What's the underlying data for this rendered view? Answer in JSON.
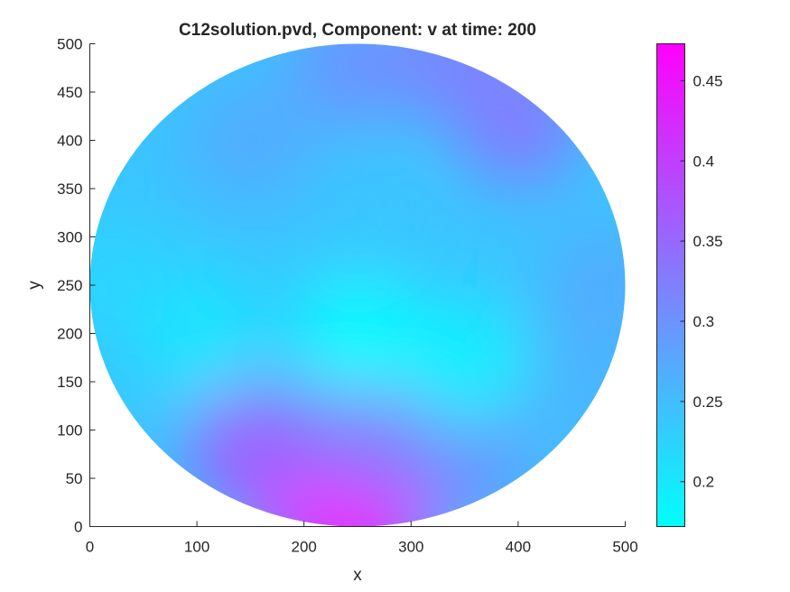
{
  "chart_data": {
    "type": "heatmap",
    "title": "C12solution.pvd, Component: v at time: 200",
    "xlabel": "x",
    "ylabel": "y",
    "xlim": [
      0,
      500
    ],
    "ylim": [
      0,
      500
    ],
    "x_ticks": [
      0,
      100,
      200,
      300,
      400,
      500
    ],
    "y_ticks": [
      0,
      50,
      100,
      150,
      200,
      250,
      300,
      350,
      400,
      450,
      500
    ],
    "x_tick_labels": [
      "0",
      "100",
      "200",
      "300",
      "400",
      "500"
    ],
    "y_tick_labels": [
      "0",
      "50",
      "100",
      "150",
      "200",
      "250",
      "300",
      "350",
      "400",
      "450",
      "500"
    ],
    "domain": {
      "shape": "circle",
      "center": [
        250,
        250
      ],
      "radius": 250
    },
    "colormap": "cool",
    "colormap_colors": [
      "#00ffff",
      "#ff00ff"
    ],
    "clim": [
      0.172,
      0.473
    ],
    "colorbar_ticks": [
      0.2,
      0.25,
      0.3,
      0.35,
      0.4,
      0.45
    ],
    "colorbar_tick_labels": [
      "0.2",
      "0.25",
      "0.3",
      "0.35",
      "0.4",
      "0.45"
    ],
    "field_samples": [
      {
        "x": 250,
        "y": 10,
        "v": 0.473
      },
      {
        "x": 200,
        "y": 40,
        "v": 0.46
      },
      {
        "x": 300,
        "y": 50,
        "v": 0.42
      },
      {
        "x": 150,
        "y": 80,
        "v": 0.36
      },
      {
        "x": 350,
        "y": 70,
        "v": 0.3
      },
      {
        "x": 250,
        "y": 100,
        "v": 0.33
      },
      {
        "x": 450,
        "y": 150,
        "v": 0.26
      },
      {
        "x": 250,
        "y": 200,
        "v": 0.175
      },
      {
        "x": 350,
        "y": 170,
        "v": 0.19
      },
      {
        "x": 100,
        "y": 200,
        "v": 0.2
      },
      {
        "x": 20,
        "y": 250,
        "v": 0.22
      },
      {
        "x": 480,
        "y": 250,
        "v": 0.27
      },
      {
        "x": 250,
        "y": 320,
        "v": 0.24
      },
      {
        "x": 150,
        "y": 400,
        "v": 0.27
      },
      {
        "x": 250,
        "y": 480,
        "v": 0.3
      },
      {
        "x": 400,
        "y": 420,
        "v": 0.33
      },
      {
        "x": 350,
        "y": 480,
        "v": 0.32
      }
    ]
  }
}
